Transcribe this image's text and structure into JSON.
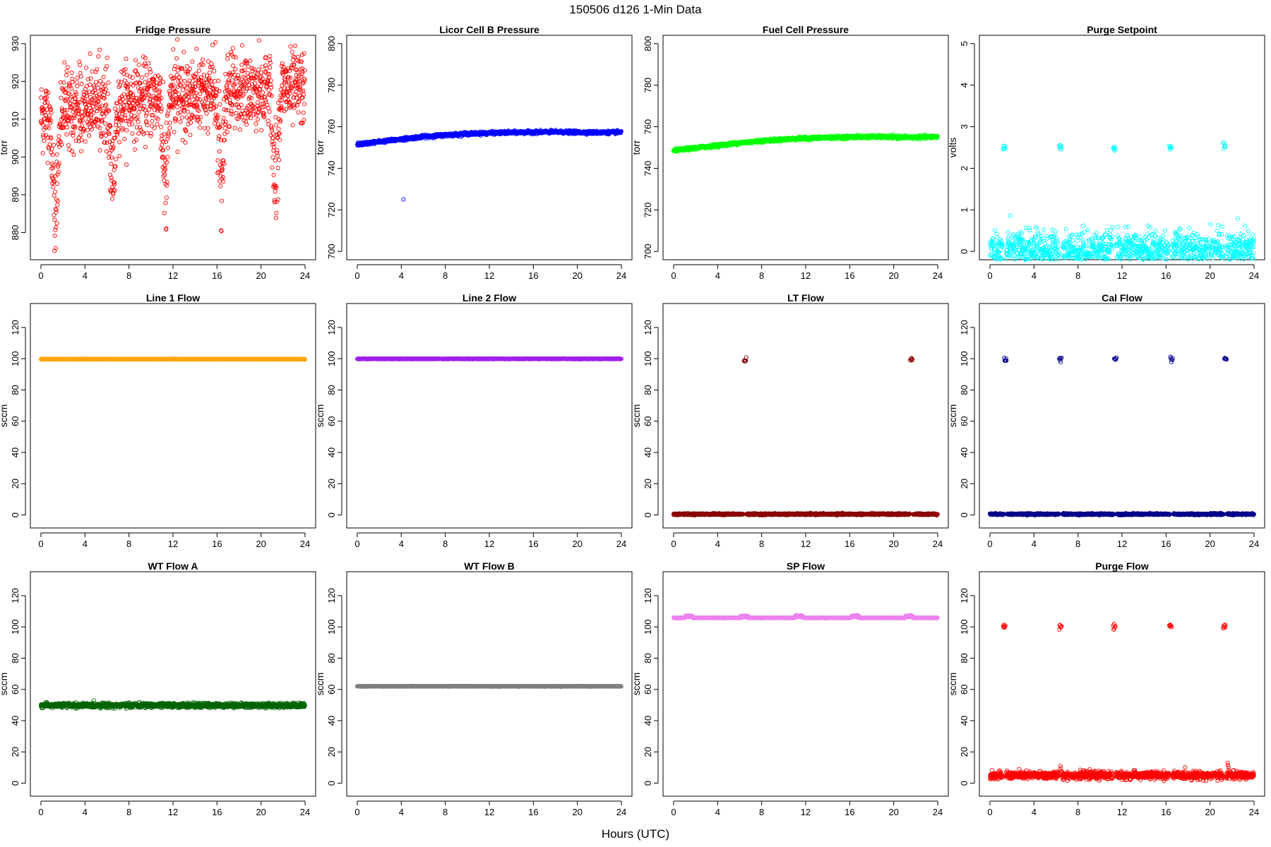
{
  "figure": {
    "title": "150506   d126   1-Min Data",
    "xlabel": "Hours (UTC)"
  },
  "chart_data": [
    {
      "type": "scatter",
      "title": "Fridge Pressure",
      "ylabel": "torr",
      "color": "#ff0000",
      "xlim": [
        0,
        24
      ],
      "ylim": [
        875,
        930
      ],
      "xticks": [
        0,
        4,
        8,
        12,
        16,
        20,
        24
      ],
      "yticks": [
        880,
        890,
        900,
        910,
        920,
        930
      ],
      "series": [
        {
          "pattern": "noise",
          "base": 913,
          "amplitude": 7,
          "trend": [
            [
              0,
              911
            ],
            [
              6,
              914
            ],
            [
              12,
              916
            ],
            [
              18,
              917
            ],
            [
              24,
              918
            ]
          ],
          "dips": [
            {
              "x": 1.3,
              "depth": 37,
              "width": 0.5
            },
            {
              "x": 6.5,
              "depth": 30,
              "width": 0.5
            },
            {
              "x": 11.3,
              "depth": 31,
              "width": 0.5
            },
            {
              "x": 16.4,
              "depth": 30,
              "width": 0.5
            },
            {
              "x": 21.3,
              "depth": 30,
              "width": 0.5
            }
          ]
        }
      ]
    },
    {
      "type": "scatter",
      "title": "Licor Cell B Pressure",
      "ylabel": "torr",
      "color": "#0000ff",
      "xlim": [
        0,
        24
      ],
      "ylim": [
        700,
        800
      ],
      "xticks": [
        0,
        4,
        8,
        12,
        16,
        20,
        24
      ],
      "yticks": [
        700,
        720,
        740,
        760,
        780,
        800
      ],
      "series": [
        {
          "pattern": "curve",
          "points": [
            [
              0,
              751.5
            ],
            [
              2,
              752.8
            ],
            [
              4,
              754
            ],
            [
              6,
              755.2
            ],
            [
              8,
              756
            ],
            [
              10,
              756.6
            ],
            [
              12,
              757
            ],
            [
              14,
              757.2
            ],
            [
              16,
              757.4
            ],
            [
              18,
              757.5
            ],
            [
              20,
              757.3
            ],
            [
              22,
              757.2
            ],
            [
              24,
              757.4
            ]
          ],
          "outliers": [
            [
              4.2,
              725
            ]
          ]
        }
      ]
    },
    {
      "type": "scatter",
      "title": "Fuel Cell Pressure",
      "ylabel": "torr",
      "color": "#00ff00",
      "xlim": [
        0,
        24
      ],
      "ylim": [
        700,
        800
      ],
      "xticks": [
        0,
        4,
        8,
        12,
        16,
        20,
        24
      ],
      "yticks": [
        700,
        720,
        740,
        760,
        780,
        800
      ],
      "series": [
        {
          "pattern": "curve",
          "points": [
            [
              0,
              748.5
            ],
            [
              2,
              749.8
            ],
            [
              4,
              751
            ],
            [
              6,
              752.2
            ],
            [
              8,
              753.2
            ],
            [
              10,
              753.9
            ],
            [
              12,
              754.4
            ],
            [
              14,
              754.8
            ],
            [
              16,
              755
            ],
            [
              18,
              755.2
            ],
            [
              20,
              755
            ],
            [
              22,
              754.9
            ],
            [
              24,
              755.2
            ]
          ]
        }
      ]
    },
    {
      "type": "scatter",
      "title": "Purge Setpoint",
      "ylabel": "volts",
      "color": "#00ffff",
      "xlim": [
        0,
        24
      ],
      "ylim": [
        0,
        5
      ],
      "xticks": [
        0,
        4,
        8,
        12,
        16,
        20,
        24
      ],
      "yticks": [
        0,
        1,
        2,
        3,
        4,
        5
      ],
      "series": [
        {
          "pattern": "events",
          "base": 0,
          "event_value": 2.5,
          "events": [
            1.3,
            6.4,
            11.3,
            16.4,
            21.3
          ]
        }
      ]
    },
    {
      "type": "scatter",
      "title": "Line 1 Flow",
      "ylabel": "sccm",
      "color": "#ffa500",
      "xlim": [
        0,
        24
      ],
      "ylim": [
        -3,
        130
      ],
      "xticks": [
        0,
        4,
        8,
        12,
        16,
        20,
        24
      ],
      "yticks": [
        0,
        20,
        40,
        60,
        80,
        100,
        120
      ],
      "series": [
        {
          "pattern": "flat",
          "value": 99.7
        }
      ]
    },
    {
      "type": "scatter",
      "title": "Line 2 Flow",
      "ylabel": "sccm",
      "color": "#a020f0",
      "xlim": [
        0,
        24
      ],
      "ylim": [
        -3,
        130
      ],
      "xticks": [
        0,
        4,
        8,
        12,
        16,
        20,
        24
      ],
      "yticks": [
        0,
        20,
        40,
        60,
        80,
        100,
        120
      ],
      "series": [
        {
          "pattern": "flat",
          "value": 99.9
        }
      ]
    },
    {
      "type": "scatter",
      "title": "LT Flow",
      "ylabel": "sccm",
      "color": "#8b0000",
      "xlim": [
        0,
        24
      ],
      "ylim": [
        -3,
        130
      ],
      "xticks": [
        0,
        4,
        8,
        12,
        16,
        20,
        24
      ],
      "yticks": [
        0,
        20,
        40,
        60,
        80,
        100,
        120
      ],
      "series": [
        {
          "pattern": "events",
          "base": 0.5,
          "event_value": 99.5,
          "events": [
            6.5,
            21.6
          ]
        }
      ]
    },
    {
      "type": "scatter",
      "title": "Cal Flow",
      "ylabel": "sccm",
      "color": "#00008b",
      "xlim": [
        0,
        24
      ],
      "ylim": [
        -3,
        130
      ],
      "xticks": [
        0,
        4,
        8,
        12,
        16,
        20,
        24
      ],
      "yticks": [
        0,
        20,
        40,
        60,
        80,
        100,
        120
      ],
      "series": [
        {
          "pattern": "events",
          "base": 0.5,
          "event_value": 99.8,
          "events": [
            1.4,
            6.4,
            11.4,
            16.5,
            21.4
          ]
        }
      ]
    },
    {
      "type": "scatter",
      "title": "WT Flow A",
      "ylabel": "sccm",
      "color": "#006400",
      "xlim": [
        0,
        24
      ],
      "ylim": [
        -3,
        130
      ],
      "xticks": [
        0,
        4,
        8,
        12,
        16,
        20,
        24
      ],
      "yticks": [
        0,
        20,
        40,
        60,
        80,
        100,
        120
      ],
      "series": [
        {
          "pattern": "flat",
          "value": 49.8,
          "noise": 1.2
        }
      ]
    },
    {
      "type": "scatter",
      "title": "WT Flow B",
      "ylabel": "sccm",
      "color": "#808080",
      "xlim": [
        0,
        24
      ],
      "ylim": [
        -3,
        130
      ],
      "xticks": [
        0,
        4,
        8,
        12,
        16,
        20,
        24
      ],
      "yticks": [
        0,
        20,
        40,
        60,
        80,
        100,
        120
      ],
      "series": [
        {
          "pattern": "flat",
          "value": 62
        }
      ]
    },
    {
      "type": "scatter",
      "title": "SP Flow",
      "ylabel": "sccm",
      "color": "#ee82ee",
      "xlim": [
        0,
        24
      ],
      "ylim": [
        -3,
        130
      ],
      "xticks": [
        0,
        4,
        8,
        12,
        16,
        20,
        24
      ],
      "yticks": [
        0,
        20,
        40,
        60,
        80,
        100,
        120
      ],
      "series": [
        {
          "pattern": "flat",
          "value": 105.8,
          "bumps": [
            1.4,
            6.4,
            11.4,
            16.5,
            21.4
          ],
          "bump_value": 106.8
        }
      ]
    },
    {
      "type": "scatter",
      "title": "Purge Flow",
      "ylabel": "sccm",
      "color": "#ff0000",
      "xlim": [
        0,
        24
      ],
      "ylim": [
        -3,
        130
      ],
      "xticks": [
        0,
        4,
        8,
        12,
        16,
        20,
        24
      ],
      "yticks": [
        0,
        20,
        40,
        60,
        80,
        100,
        120
      ],
      "series": [
        {
          "pattern": "events",
          "base": 5,
          "noise": 2,
          "event_value": 100,
          "events": [
            1.3,
            6.4,
            11.3,
            16.4,
            21.3
          ],
          "spikes": [
            [
              6.4,
              11
            ],
            [
              21.6,
              13
            ]
          ]
        }
      ]
    }
  ]
}
